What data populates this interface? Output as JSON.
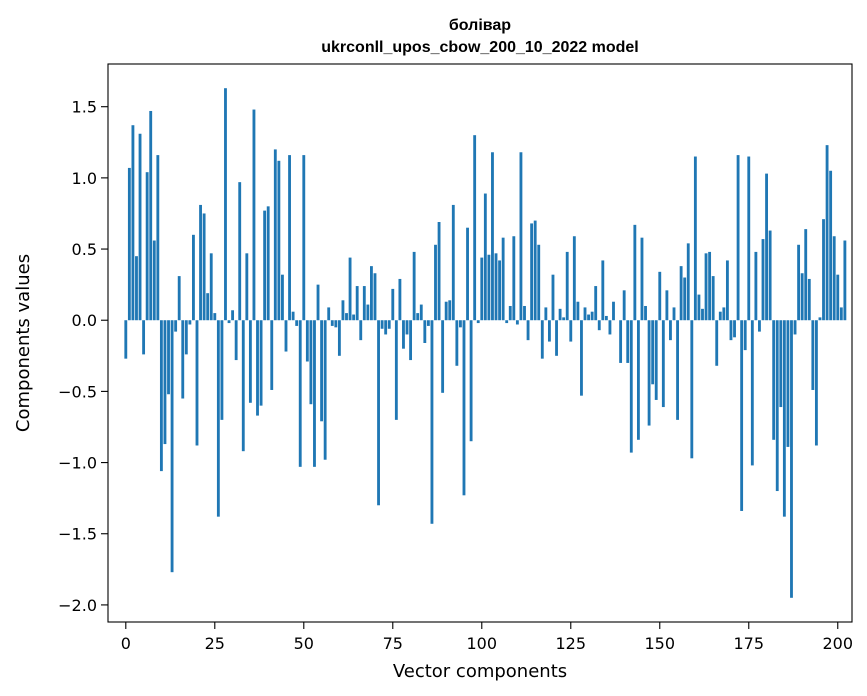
{
  "chart_data": {
    "type": "bar",
    "title": "болівар",
    "subtitle": "ukrconll_upos_cbow_200_10_2022 model",
    "xlabel": "Vector components",
    "ylabel": "Components values",
    "xlim": [
      -5,
      204
    ],
    "ylim": [
      -2.12,
      1.8
    ],
    "xticks": [
      0,
      25,
      50,
      75,
      100,
      125,
      150,
      175,
      200
    ],
    "yticks": [
      -2.0,
      -1.5,
      -1.0,
      -0.5,
      0.0,
      0.5,
      1.0,
      1.5
    ],
    "ytick_labels": [
      "−2.0",
      "−1.5",
      "−1.0",
      "−0.5",
      "0.0",
      "0.5",
      "1.0",
      "1.5"
    ],
    "grid": false,
    "bar_color": "#1f77b4",
    "values": [
      -0.27,
      1.07,
      1.37,
      0.45,
      1.31,
      -0.24,
      1.04,
      1.47,
      0.56,
      1.16,
      -1.06,
      -0.87,
      -0.52,
      -1.77,
      -0.08,
      0.31,
      -0.55,
      -0.24,
      -0.03,
      0.6,
      -0.88,
      0.81,
      0.75,
      0.19,
      0.47,
      0.05,
      -1.38,
      -0.7,
      1.63,
      -0.02,
      0.07,
      -0.28,
      0.97,
      -0.92,
      0.47,
      -0.58,
      1.48,
      -0.67,
      -0.6,
      0.77,
      0.8,
      -0.49,
      1.2,
      1.12,
      0.32,
      -0.22,
      1.16,
      0.06,
      -0.04,
      -1.03,
      1.16,
      -0.29,
      -0.59,
      -1.03,
      0.25,
      -0.71,
      -0.98,
      0.09,
      -0.04,
      -0.05,
      -0.25,
      0.14,
      0.05,
      0.44,
      0.04,
      0.24,
      -0.14,
      0.24,
      0.11,
      0.38,
      0.33,
      -1.3,
      -0.06,
      -0.1,
      -0.06,
      0.22,
      -0.7,
      0.29,
      -0.2,
      -0.1,
      -0.28,
      0.48,
      0.05,
      0.11,
      -0.16,
      -0.04,
      -1.43,
      0.53,
      0.69,
      -0.51,
      0.13,
      0.14,
      0.81,
      -0.32,
      -0.05,
      -1.23,
      0.65,
      -0.85,
      1.3,
      -0.02,
      0.44,
      0.89,
      0.46,
      1.18,
      0.47,
      0.42,
      0.58,
      -0.02,
      0.1,
      0.59,
      -0.03,
      1.18,
      0.1,
      -0.14,
      0.68,
      0.7,
      0.53,
      -0.27,
      0.09,
      -0.15,
      0.32,
      -0.25,
      0.08,
      0.02,
      0.48,
      -0.15,
      0.59,
      0.13,
      -0.53,
      0.09,
      0.04,
      0.06,
      0.24,
      -0.07,
      0.42,
      0.03,
      -0.1,
      0.13,
      0.0,
      -0.3,
      0.21,
      -0.3,
      -0.93,
      0.67,
      -0.84,
      0.58,
      0.1,
      -0.74,
      -0.45,
      -0.56,
      0.34,
      -0.61,
      0.21,
      -0.14,
      0.09,
      -0.7,
      0.38,
      0.3,
      0.54,
      -0.97,
      1.15,
      0.18,
      0.08,
      0.47,
      0.48,
      0.31,
      -0.32,
      0.06,
      0.09,
      0.42,
      -0.14,
      -0.12,
      1.16,
      -1.34,
      -0.21,
      1.15,
      -1.02,
      0.48,
      -0.08,
      0.57,
      1.03,
      0.63,
      -0.84,
      -1.2,
      -0.61,
      -1.38,
      -0.89,
      -1.95,
      -0.1,
      0.53,
      0.33,
      0.64,
      0.29,
      -0.49,
      -0.88,
      0.02,
      0.71,
      1.23,
      1.05,
      0.59,
      0.32,
      0.09,
      0.56
    ]
  }
}
